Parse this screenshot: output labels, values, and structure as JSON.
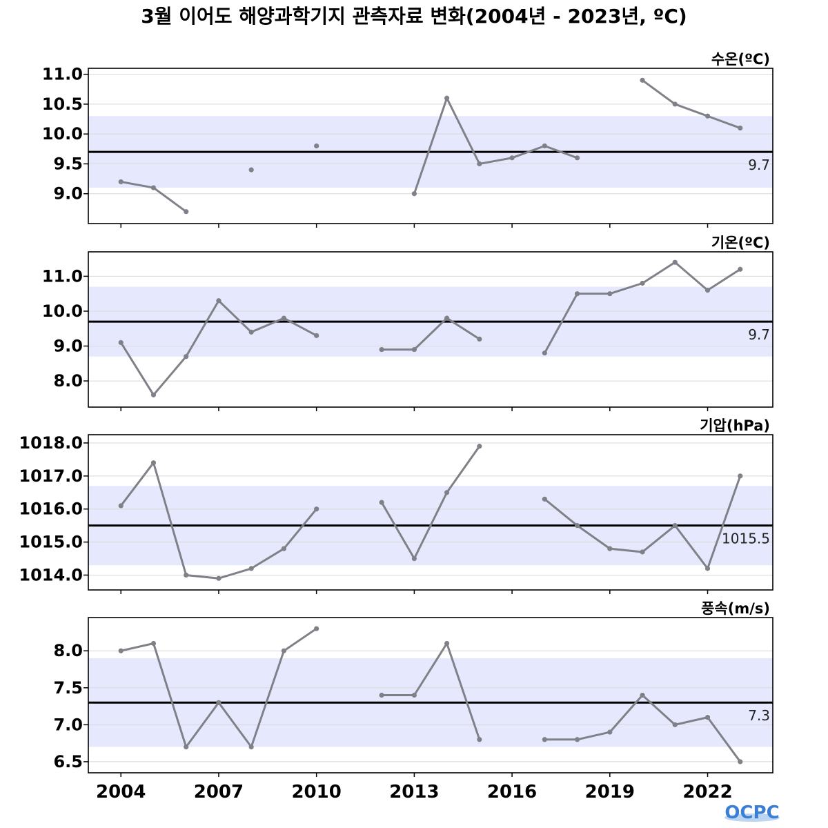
{
  "chart_data": {
    "type": "line",
    "title": "3월 이어도 해양과학기지 관측자료 변화(2004년 - 2023년, ºC)",
    "x": [
      2004,
      2005,
      2006,
      2007,
      2008,
      2009,
      2010,
      2011,
      2012,
      2013,
      2014,
      2015,
      2016,
      2017,
      2018,
      2019,
      2020,
      2021,
      2022,
      2023
    ],
    "x_ticks": [
      "2004",
      "2007",
      "2010",
      "2013",
      "2016",
      "2019",
      "2022"
    ],
    "xlim": [
      2003,
      2024
    ],
    "grid": true,
    "colors": {
      "line": "#808088",
      "band": "#e6e9fd",
      "mean": "#000000",
      "grid": "#d8d8d8"
    },
    "panels": [
      {
        "label": "수온(ºC)",
        "ylim": [
          8.5,
          11.1
        ],
        "yticks": [
          "9.0",
          "9.5",
          "10.0",
          "10.5",
          "11.0"
        ],
        "mean": 9.7,
        "mean_label": "9.7",
        "band": [
          9.1,
          10.3
        ],
        "values": [
          9.2,
          9.1,
          8.7,
          null,
          9.4,
          null,
          9.8,
          null,
          null,
          9.0,
          10.6,
          9.5,
          9.6,
          9.8,
          9.6,
          null,
          10.9,
          10.5,
          10.3,
          10.1
        ]
      },
      {
        "label": "기온(ºC)",
        "ylim": [
          7.25,
          11.7
        ],
        "yticks": [
          "8.0",
          "9.0",
          "10.0",
          "11.0"
        ],
        "mean": 9.7,
        "mean_label": "9.7",
        "band": [
          8.7,
          10.7
        ],
        "values": [
          9.1,
          7.6,
          8.7,
          10.3,
          9.4,
          9.8,
          9.3,
          null,
          8.9,
          8.9,
          9.8,
          9.2,
          null,
          8.8,
          10.5,
          10.5,
          10.8,
          11.4,
          10.6,
          11.2
        ]
      },
      {
        "label": "기압(hPa)",
        "ylim": [
          1013.55,
          1018.25
        ],
        "yticks": [
          "1014.0",
          "1015.0",
          "1016.0",
          "1017.0",
          "1018.0"
        ],
        "mean": 1015.5,
        "mean_label": "1015.5",
        "band": [
          1014.3,
          1016.7
        ],
        "values": [
          1016.1,
          1017.4,
          1014.0,
          1013.9,
          1014.2,
          1014.8,
          1016.0,
          null,
          1016.2,
          1014.5,
          1016.5,
          1017.9,
          null,
          1016.3,
          1015.5,
          1014.8,
          1014.7,
          1015.5,
          1014.2,
          1017.0
        ]
      },
      {
        "label": "풍속(m/s)",
        "ylim": [
          6.35,
          8.45
        ],
        "yticks": [
          "6.5",
          "7.0",
          "7.5",
          "8.0"
        ],
        "mean": 7.3,
        "mean_label": "7.3",
        "band": [
          6.7,
          7.9
        ],
        "values": [
          8.0,
          8.1,
          6.7,
          7.3,
          6.7,
          8.0,
          8.3,
          null,
          7.4,
          7.4,
          8.1,
          6.8,
          null,
          6.8,
          6.8,
          6.9,
          7.4,
          7.0,
          7.1,
          6.5
        ]
      }
    ]
  },
  "logo": {
    "text": "OCPC"
  }
}
